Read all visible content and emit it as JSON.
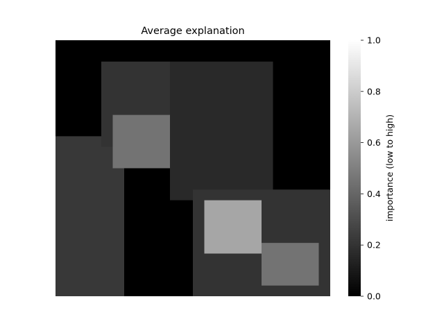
{
  "chart_data": {
    "type": "heatmap",
    "title": "Average explanation",
    "xlabel": "",
    "ylabel": "",
    "colormap": "gray",
    "colorbar": {
      "label": "importance (low to high)",
      "vmin": 0.0,
      "vmax": 1.0,
      "ticks": [
        "0.0",
        "0.2",
        "0.4",
        "0.6",
        "0.8",
        "1.0"
      ]
    },
    "grid_size": [
      48,
      48
    ],
    "regions": [
      {
        "name": "left-band",
        "row_range": [
          18,
          48
        ],
        "col_range": [
          0,
          12
        ],
        "value": 0.22
      },
      {
        "name": "upper-left-structure",
        "row_range": [
          4,
          20
        ],
        "col_range": [
          8,
          20
        ],
        "value": 0.2
      },
      {
        "name": "upper-left-highlight",
        "row_range": [
          14,
          24
        ],
        "col_range": [
          10,
          20
        ],
        "value": 0.45
      },
      {
        "name": "central-curved-band",
        "row_range": [
          4,
          30
        ],
        "col_range": [
          20,
          38
        ],
        "value": 0.16
      },
      {
        "name": "lower-right-structure",
        "row_range": [
          28,
          48
        ],
        "col_range": [
          24,
          48
        ],
        "value": 0.2
      },
      {
        "name": "lower-right-highlight-main",
        "row_range": [
          30,
          40
        ],
        "col_range": [
          26,
          36
        ],
        "value": 0.65
      },
      {
        "name": "lower-right-highlight-secondary",
        "row_range": [
          38,
          46
        ],
        "col_range": [
          36,
          46
        ],
        "value": 0.45
      }
    ]
  }
}
